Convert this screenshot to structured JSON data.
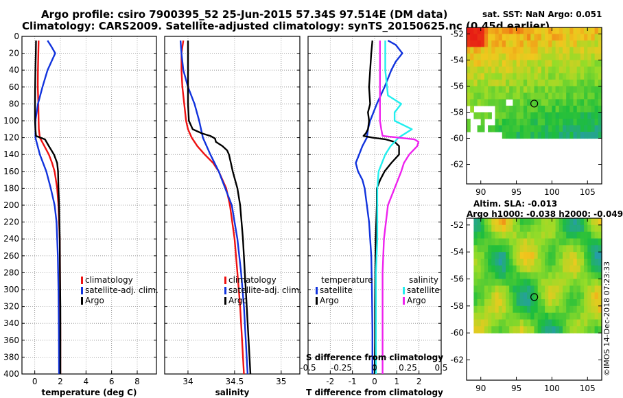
{
  "header": {
    "title_line1": "Argo profile: csiro 7900395_52 25-Jun-2015 57.34S 97.514E (DM data)",
    "title_line2": "Climatology: CARS2009. Satellite-adjusted climatology: synTS_20150625.nc (0.45d earlier)"
  },
  "maps": {
    "sst_title": "sat. SST: NaN Argo: 0.051",
    "altim_title1": "Altim. SLA: -0.013",
    "altim_title2": "Argo h1000: -0.038 h2000: -0.049",
    "lat_ticks": [
      "-52",
      "-54",
      "-56",
      "-58",
      "-60",
      "-62"
    ],
    "lon_ticks": [
      "90",
      "95",
      "100",
      "105"
    ],
    "argo_position": {
      "lon": 97.514,
      "lat": -57.34
    }
  },
  "watermark": "©IMOS 14-Dec-2018 07:23:33",
  "colors": {
    "climatology": "#ee1111",
    "satellite": "#1133dd",
    "argo": "#000000",
    "sal_satellite": "#22eeee",
    "sal_argo": "#ee22ee",
    "grid": "#888888"
  },
  "chart_data": [
    {
      "type": "line",
      "name": "temperature",
      "xlabel": "temperature (deg C)",
      "ylabel": "",
      "xlim": [
        -1,
        9.5
      ],
      "ylim": [
        400,
        0
      ],
      "xticks": [
        0,
        2,
        4,
        6,
        8
      ],
      "xtick_labels": [
        "0",
        "2",
        "4",
        "6",
        "8"
      ],
      "yticks": [
        0,
        20,
        40,
        60,
        80,
        100,
        120,
        140,
        160,
        180,
        200,
        220,
        240,
        260,
        280,
        300,
        320,
        340,
        360,
        380,
        400
      ],
      "ytick_labels": [
        "0",
        "20",
        "40",
        "60",
        "80",
        "100",
        "120",
        "140",
        "160",
        "180",
        "200",
        "220",
        "240",
        "260",
        "280",
        "300",
        "320",
        "340",
        "360",
        "380",
        "400"
      ],
      "legend": [
        "climatology",
        "satellite-adj. clim.",
        "Argo"
      ],
      "series": [
        {
          "name": "climatology",
          "depth": [
            5,
            20,
            40,
            60,
            80,
            100,
            110,
            120,
            130,
            140,
            150,
            160,
            180,
            200,
            220,
            240,
            260,
            300,
            350,
            400
          ],
          "values": [
            0.3,
            0.28,
            0.25,
            0.24,
            0.28,
            0.3,
            0.32,
            0.4,
            0.75,
            1.1,
            1.35,
            1.55,
            1.75,
            1.85,
            1.9,
            1.95,
            1.97,
            1.98,
            2.0,
            2.0
          ]
        },
        {
          "name": "satellite-adj. clim.",
          "depth": [
            5,
            12,
            20,
            30,
            40,
            60,
            80,
            100,
            120,
            140,
            160,
            180,
            200,
            220,
            260,
            300,
            350,
            400
          ],
          "values": [
            1.0,
            1.3,
            1.6,
            1.3,
            1.0,
            0.6,
            0.25,
            0.05,
            0.05,
            0.4,
            0.9,
            1.25,
            1.55,
            1.7,
            1.8,
            1.85,
            1.88,
            1.9
          ]
        },
        {
          "name": "Argo",
          "depth": [
            5,
            20,
            40,
            60,
            80,
            100,
            110,
            118,
            122,
            130,
            140,
            150,
            160,
            180,
            200,
            240,
            280,
            320,
            360,
            400
          ],
          "values": [
            0.1,
            0.08,
            0.05,
            0.03,
            0.02,
            0.02,
            0.05,
            0.1,
            0.8,
            1.1,
            1.5,
            1.75,
            1.82,
            1.85,
            1.9,
            1.95,
            1.97,
            2.0,
            2.0,
            2.0
          ]
        }
      ]
    },
    {
      "type": "line",
      "name": "salinity",
      "xlabel": "salinity",
      "ylabel": "",
      "xlim": [
        33.75,
        35.2
      ],
      "ylim": [
        400,
        0
      ],
      "xticks": [
        34,
        34.5,
        35
      ],
      "xtick_labels": [
        "34",
        "34.5",
        "35"
      ],
      "legend": [
        "climatology",
        "satellite-adj. clim.",
        "Argo"
      ],
      "series": [
        {
          "name": "climatology",
          "depth": [
            5,
            20,
            40,
            60,
            80,
            100,
            110,
            120,
            130,
            140,
            150,
            160,
            180,
            200,
            240,
            280,
            320,
            360,
            400
          ],
          "values": [
            33.95,
            33.93,
            33.93,
            33.94,
            33.96,
            33.98,
            34.0,
            34.04,
            34.1,
            34.18,
            34.27,
            34.33,
            34.41,
            34.45,
            34.5,
            34.53,
            34.56,
            34.58,
            34.6
          ]
        },
        {
          "name": "satellite-adj. clim.",
          "depth": [
            5,
            20,
            40,
            60,
            80,
            100,
            120,
            140,
            160,
            180,
            200,
            240,
            280,
            320,
            360,
            400
          ],
          "values": [
            33.92,
            33.93,
            33.95,
            34.0,
            34.07,
            34.12,
            34.16,
            34.24,
            34.33,
            34.4,
            34.47,
            34.53,
            34.57,
            34.6,
            34.62,
            34.64
          ]
        },
        {
          "name": "Argo",
          "depth": [
            5,
            20,
            40,
            60,
            80,
            100,
            110,
            115,
            118,
            121,
            125,
            130,
            135,
            140,
            150,
            160,
            180,
            200,
            240,
            280,
            320,
            360,
            400
          ],
          "values": [
            34.0,
            34.0,
            34.0,
            34.0,
            34.0,
            34.01,
            34.05,
            34.15,
            34.24,
            34.29,
            34.3,
            34.37,
            34.42,
            34.44,
            34.46,
            34.48,
            34.53,
            34.56,
            34.59,
            34.61,
            34.63,
            34.65,
            34.67
          ]
        }
      ]
    },
    {
      "type": "line",
      "name": "difference from climatology",
      "xlabel": "T difference from climatology",
      "top_xlabel": "S difference from climatology",
      "xlim": [
        -3,
        3
      ],
      "ylim": [
        400,
        0
      ],
      "xticks": [
        -2,
        -1,
        0,
        1,
        2
      ],
      "xtick_labels": [
        "-2",
        "-1",
        "0",
        "1",
        "2"
      ],
      "top_xticks": [
        -0.5,
        -0.25,
        0,
        0.25,
        0.5
      ],
      "top_xtick_labels": [
        "-0.5",
        "-0.25",
        "0",
        "0.25",
        "0.5"
      ],
      "legend_temperature_title": "temperature",
      "legend_salinity_title": "salinity",
      "legend_temperature": [
        "satellite",
        "Argo"
      ],
      "legend_salinity": [
        "satellite",
        "Argo"
      ],
      "series": [
        {
          "name": "T satellite",
          "depth": [
            5,
            10,
            20,
            30,
            40,
            60,
            80,
            100,
            110,
            120,
            130,
            140,
            150,
            160,
            170,
            180,
            200,
            220,
            260,
            300,
            350,
            400
          ],
          "values": [
            0.6,
            0.95,
            1.25,
            0.95,
            0.75,
            0.45,
            0.1,
            -0.2,
            -0.3,
            -0.35,
            -0.55,
            -0.7,
            -0.85,
            -0.75,
            -0.55,
            -0.45,
            -0.35,
            -0.25,
            -0.15,
            -0.12,
            -0.1,
            -0.1
          ]
        },
        {
          "name": "T Argo",
          "depth": [
            5,
            20,
            40,
            60,
            80,
            90,
            100,
            110,
            115,
            118,
            120,
            122,
            125,
            130,
            140,
            150,
            160,
            170,
            180,
            200,
            240,
            280,
            320,
            360,
            400
          ],
          "values": [
            -0.1,
            -0.15,
            -0.2,
            -0.25,
            -0.2,
            -0.3,
            -0.25,
            -0.3,
            -0.4,
            -0.5,
            -0.1,
            0.5,
            0.9,
            1.1,
            1.1,
            0.75,
            0.45,
            0.25,
            0.1,
            0.1,
            0.05,
            0.03,
            0.02,
            0.02,
            0.0
          ]
        },
        {
          "name": "S satellite",
          "depth": [
            5,
            40,
            70,
            80,
            90,
            100,
            110,
            120,
            130,
            140,
            160,
            180,
            200,
            240,
            280,
            320,
            360,
            400
          ],
          "values": [
            0.08,
            0.08,
            0.1,
            0.2,
            0.15,
            0.15,
            0.28,
            0.18,
            0.12,
            0.08,
            0.03,
            0.02,
            0.02,
            0.02,
            0.01,
            0.01,
            0.01,
            0.01
          ]
        },
        {
          "name": "S Argo",
          "depth": [
            5,
            40,
            80,
            100,
            110,
            118,
            122,
            125,
            130,
            140,
            150,
            160,
            180,
            200,
            240,
            280,
            320,
            360,
            400
          ],
          "values": [
            0.04,
            0.04,
            0.04,
            0.04,
            0.05,
            0.06,
            0.3,
            0.33,
            0.32,
            0.26,
            0.22,
            0.2,
            0.15,
            0.1,
            0.07,
            0.06,
            0.06,
            0.06,
            0.06
          ]
        }
      ]
    }
  ]
}
